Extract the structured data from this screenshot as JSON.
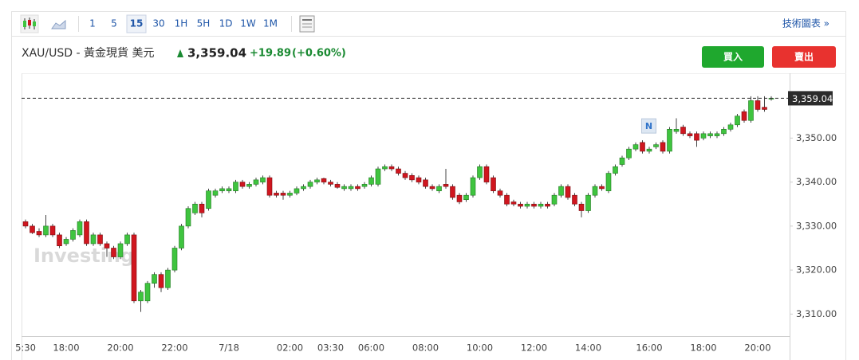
{
  "toolbar": {
    "intervals": [
      "1",
      "5",
      "15",
      "30",
      "1H",
      "5H",
      "1D",
      "1W",
      "1M"
    ],
    "active_interval": "15",
    "right_link": "技術圖表 »"
  },
  "header": {
    "symbol": "XAU/USD - 黃金現貨 美元",
    "change": "+19.89",
    "change_percent": "(+0.60%)"
  },
  "buttons": {
    "buy": "買入",
    "sell": "賣出"
  },
  "watermark": "Investing",
  "chart_data": {
    "type": "candlestick",
    "up_color": "#3fc43f",
    "down_color": "#d0161f",
    "ylim": [
      3305,
      3364
    ],
    "yticks": [
      {
        "value": 3310,
        "label": "3,310.00"
      },
      {
        "value": 3320,
        "label": "3,320.00"
      },
      {
        "value": 3330,
        "label": "3,330.00"
      },
      {
        "value": 3340,
        "label": "3,340.00"
      },
      {
        "value": 3350,
        "label": "3,350.00"
      }
    ],
    "grid": false,
    "last": {
      "value": 3359.04,
      "label": "3,359.04"
    },
    "annotations": [
      {
        "text": "N",
        "category_index": 91
      }
    ],
    "categories": [
      "5:30",
      null,
      null,
      null,
      null,
      null,
      "18:00",
      null,
      null,
      null,
      null,
      null,
      null,
      null,
      "20:00",
      null,
      null,
      null,
      null,
      null,
      null,
      null,
      "22:00",
      null,
      null,
      null,
      null,
      null,
      null,
      null,
      "7/18",
      null,
      null,
      null,
      null,
      null,
      null,
      null,
      null,
      "02:00",
      null,
      null,
      null,
      null,
      null,
      "03:30",
      null,
      null,
      null,
      null,
      null,
      "06:00",
      null,
      null,
      null,
      null,
      null,
      null,
      null,
      "08:00",
      null,
      null,
      null,
      null,
      null,
      null,
      null,
      "10:00",
      null,
      null,
      null,
      null,
      null,
      null,
      null,
      "12:00",
      null,
      null,
      null,
      null,
      null,
      null,
      null,
      "14:00",
      null,
      null,
      null,
      null,
      null,
      null,
      null,
      null,
      "16:00",
      null,
      null,
      null,
      null,
      null,
      null,
      null,
      "18:00",
      null,
      null,
      null,
      null,
      null,
      null,
      null,
      "20:00",
      null,
      null
    ],
    "ohlc": [
      [
        3331,
        3331.5,
        3329.5,
        3330
      ],
      [
        3330,
        3330.5,
        3328.2,
        3328.5
      ],
      [
        3328.8,
        3329.5,
        3327.5,
        3328
      ],
      [
        3328,
        3332.5,
        3327.5,
        3330
      ],
      [
        3330,
        3330.5,
        3327.5,
        3328
      ],
      [
        3328,
        3328.5,
        3325,
        3325.5
      ],
      [
        3326,
        3327.5,
        3325.5,
        3327
      ],
      [
        3327,
        3329.5,
        3326.5,
        3329
      ],
      [
        3328,
        3331.5,
        3327.5,
        3331
      ],
      [
        3331,
        3331.5,
        3325.5,
        3326
      ],
      [
        3326,
        3328.5,
        3325.5,
        3328
      ],
      [
        3328,
        3328.5,
        3325.5,
        3326
      ],
      [
        3326,
        3326.5,
        3323,
        3325
      ],
      [
        3325,
        3325.5,
        3322.5,
        3323
      ],
      [
        3323,
        3326.5,
        3322.5,
        3326
      ],
      [
        3326,
        3328.5,
        3325.5,
        3328
      ],
      [
        3328,
        3328.5,
        3312.5,
        3313
      ],
      [
        3313,
        3315.5,
        3310.5,
        3315
      ],
      [
        3313,
        3317.5,
        3312.5,
        3317
      ],
      [
        3317,
        3319.5,
        3316,
        3319
      ],
      [
        3319,
        3319.5,
        3315,
        3316
      ],
      [
        3316,
        3320.5,
        3315.5,
        3320
      ],
      [
        3320,
        3325.5,
        3319.5,
        3325
      ],
      [
        3325,
        3330.5,
        3324.5,
        3330
      ],
      [
        3330,
        3334.5,
        3329.5,
        3334
      ],
      [
        3333,
        3335.5,
        3332.5,
        3335
      ],
      [
        3335,
        3335.5,
        3332,
        3333
      ],
      [
        3334,
        3338.5,
        3333.5,
        3338
      ],
      [
        3337,
        3338.5,
        3336.5,
        3338
      ],
      [
        3338,
        3339,
        3337.5,
        3338.5
      ],
      [
        3338,
        3339,
        3337.5,
        3338.5
      ],
      [
        3338,
        3340.5,
        3337.5,
        3340
      ],
      [
        3340,
        3340.5,
        3338.5,
        3339
      ],
      [
        3339,
        3340,
        3338.5,
        3339.5
      ],
      [
        3339.5,
        3341,
        3339,
        3340.5
      ],
      [
        3340,
        3341.5,
        3339.5,
        3341
      ],
      [
        3341,
        3341.5,
        3336.5,
        3337
      ],
      [
        3337.5,
        3338,
        3336.5,
        3337
      ],
      [
        3337.5,
        3338,
        3336,
        3337
      ],
      [
        3337,
        3338,
        3336.5,
        3337.5
      ],
      [
        3337.5,
        3339,
        3337,
        3338.5
      ],
      [
        3338.5,
        3339.5,
        3338,
        3339
      ],
      [
        3339,
        3340.5,
        3338.5,
        3340
      ],
      [
        3340,
        3341,
        3339.5,
        3340.5
      ],
      [
        3340.8,
        3341,
        3339.5,
        3340
      ],
      [
        3340,
        3340.5,
        3339,
        3339.5
      ],
      [
        3339.5,
        3340,
        3338.5,
        3338.8
      ],
      [
        3338.5,
        3339.5,
        3338,
        3339
      ],
      [
        3338.5,
        3339.5,
        3338,
        3339
      ],
      [
        3339,
        3339.5,
        3338,
        3338.5
      ],
      [
        3339,
        3340,
        3338.5,
        3339.5
      ],
      [
        3339.5,
        3341.5,
        3339,
        3341
      ],
      [
        3339.5,
        3343.5,
        3339,
        3343
      ],
      [
        3343,
        3344,
        3342.5,
        3343.5
      ],
      [
        3343.5,
        3344,
        3342.5,
        3343
      ],
      [
        3343,
        3343.5,
        3341.5,
        3342
      ],
      [
        3342,
        3342.5,
        3340.5,
        3341
      ],
      [
        3341.5,
        3342,
        3340,
        3340.5
      ],
      [
        3341,
        3341.5,
        3339.5,
        3340
      ],
      [
        3340.5,
        3341,
        3338.5,
        3339
      ],
      [
        3339,
        3339.5,
        3338,
        3338.5
      ],
      [
        3338,
        3339.5,
        3337.5,
        3339
      ],
      [
        3339.5,
        3343,
        3338.5,
        3339
      ],
      [
        3339,
        3339.5,
        3336,
        3336.5
      ],
      [
        3337,
        3337.5,
        3335,
        3335.5
      ],
      [
        3336,
        3337.5,
        3335.5,
        3337
      ],
      [
        3337,
        3341.5,
        3336.5,
        3341
      ],
      [
        3341,
        3344,
        3340.5,
        3343.5
      ],
      [
        3343.5,
        3344,
        3339.5,
        3340
      ],
      [
        3341,
        3341.5,
        3337.5,
        3338
      ],
      [
        3338,
        3338.5,
        3336.5,
        3337
      ],
      [
        3337,
        3337.5,
        3334.5,
        3335
      ],
      [
        3335.5,
        3336,
        3334.5,
        3335
      ],
      [
        3335,
        3335.5,
        3334,
        3334.5
      ],
      [
        3334.5,
        3335.5,
        3334,
        3335
      ],
      [
        3335,
        3335.5,
        3334,
        3334.5
      ],
      [
        3334.5,
        3335.5,
        3334,
        3335
      ],
      [
        3335,
        3335.5,
        3334,
        3334.5
      ],
      [
        3335,
        3337.5,
        3334.5,
        3337
      ],
      [
        3337,
        3339.5,
        3336.5,
        3339
      ],
      [
        3339,
        3339.5,
        3336,
        3336.5
      ],
      [
        3337,
        3337.5,
        3334.5,
        3335
      ],
      [
        3335,
        3335.5,
        3332,
        3333.5
      ],
      [
        3333.5,
        3337.5,
        3333,
        3337
      ],
      [
        3337,
        3339.5,
        3336.5,
        3339
      ],
      [
        3339,
        3339.5,
        3338,
        3338.5
      ],
      [
        3338,
        3342.5,
        3337.5,
        3342
      ],
      [
        3342,
        3344,
        3341.5,
        3343.5
      ],
      [
        3344,
        3346,
        3343.5,
        3345.5
      ],
      [
        3345.5,
        3348,
        3345,
        3347.5
      ],
      [
        3347.5,
        3349,
        3347,
        3348.5
      ],
      [
        3349,
        3349.5,
        3346.5,
        3347
      ],
      [
        3347,
        3348,
        3346.5,
        3347.5
      ],
      [
        3348,
        3349,
        3347.5,
        3348.5
      ],
      [
        3349,
        3349.5,
        3346.5,
        3347
      ],
      [
        3347,
        3352.5,
        3346.5,
        3352
      ],
      [
        3351.5,
        3354.5,
        3351,
        3352
      ],
      [
        3352.5,
        3353,
        3350.5,
        3351
      ],
      [
        3351,
        3351.5,
        3350,
        3350.5
      ],
      [
        3351,
        3351.5,
        3348,
        3349.5
      ],
      [
        3350,
        3351.5,
        3349.5,
        3351
      ],
      [
        3350.5,
        3351.5,
        3350,
        3351
      ],
      [
        3350.5,
        3351.5,
        3350,
        3351
      ],
      [
        3351,
        3352.5,
        3350.5,
        3352
      ],
      [
        3352,
        3353.5,
        3351.5,
        3353
      ],
      [
        3353,
        3355.5,
        3352.5,
        3355
      ],
      [
        3356,
        3356.5,
        3353.5,
        3354
      ],
      [
        3354,
        3359.5,
        3353.5,
        3358.5
      ],
      [
        3358.5,
        3359.5,
        3356,
        3356.5
      ],
      [
        3357,
        3359.5,
        3356,
        3356.5
      ],
      [
        3359,
        3359.5,
        3358.5,
        3359.04
      ]
    ]
  }
}
